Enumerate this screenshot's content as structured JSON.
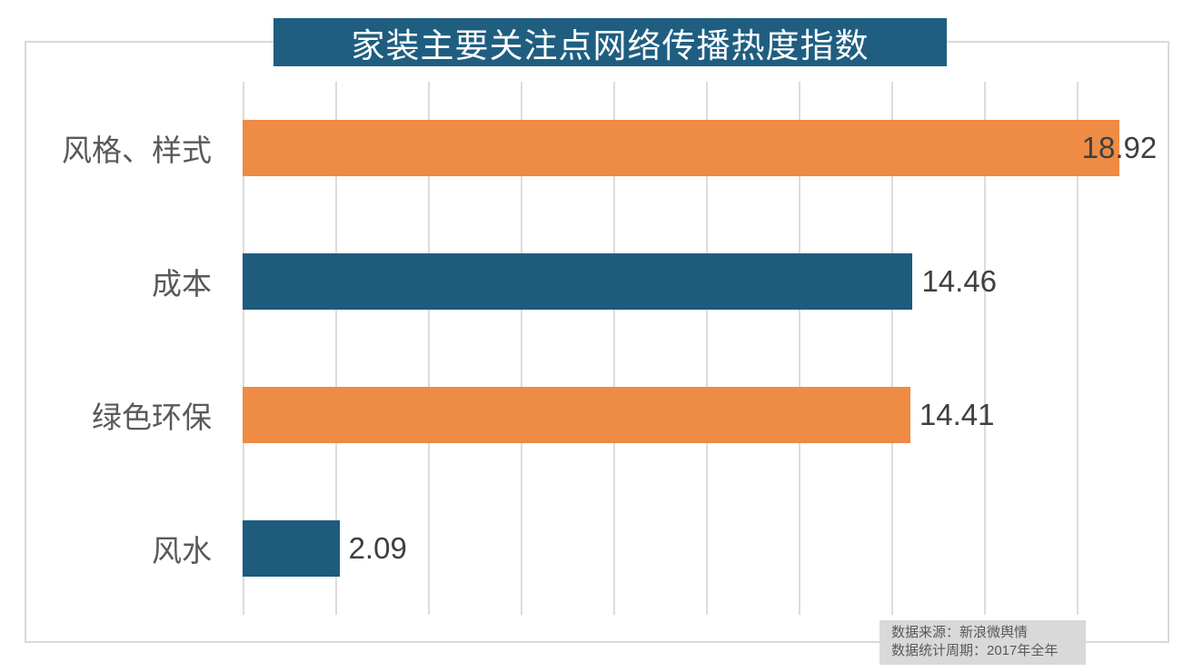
{
  "title": "家装主要关注点网络传播热度指数",
  "source": {
    "line1": "数据来源：新浪微舆情",
    "line2": "数据统计周期：2017年全年"
  },
  "colors": {
    "title_bg": "#1F5E80",
    "bar_orange": "#EE8B44",
    "bar_teal": "#1E5B7D",
    "gridline": "#DCDCDC",
    "frame_border": "#D9D9D9",
    "category_text": "#595959",
    "value_text": "#3F3F3F",
    "source_bg": "#D9D9D9",
    "title_text": "#FFFFFF"
  },
  "chart_data": {
    "type": "bar",
    "orientation": "horizontal",
    "title": "家装主要关注点网络传播热度指数",
    "categories": [
      "风格、样式",
      "成本",
      "绿色环保",
      "风水"
    ],
    "values": [
      18.92,
      14.46,
      14.41,
      2.09
    ],
    "value_labels": [
      "18.92",
      "14.46",
      "14.41",
      "2.09"
    ],
    "series_colors": [
      "#EE8B44",
      "#1E5B7D",
      "#EE8B44",
      "#1E5B7D"
    ],
    "xlabel": "",
    "ylabel": "",
    "xlim": [
      0,
      20
    ],
    "gridline_step": 2,
    "grid": true,
    "legend": false,
    "axis_tick_labels_visible": false,
    "annotations": [
      "数据来源：新浪微舆情",
      "数据统计周期：2017年全年"
    ]
  }
}
